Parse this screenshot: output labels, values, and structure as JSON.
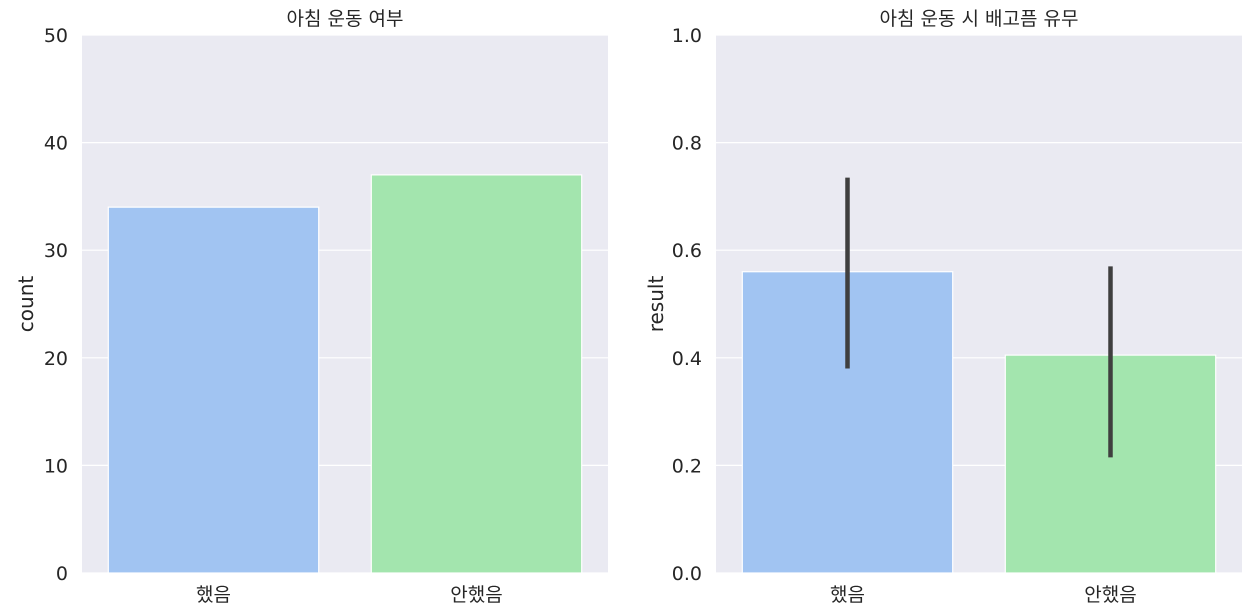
{
  "chart_data": [
    {
      "type": "bar",
      "title": "아침 운동 여부",
      "xlabel": "",
      "ylabel": "count",
      "categories": [
        "했음",
        "안했음"
      ],
      "values": [
        34,
        37
      ],
      "colors": [
        "#a1c4f2",
        "#a3e5ae"
      ],
      "ylim": [
        0,
        50
      ],
      "yticks": [
        0,
        10,
        20,
        30,
        40,
        50
      ],
      "ytick_labels": [
        "0",
        "10",
        "20",
        "30",
        "40",
        "50"
      ],
      "grid": true,
      "background": "#eaeaf2"
    },
    {
      "type": "bar",
      "title": "아침 운동 시 배고픔 유무",
      "xlabel": "",
      "ylabel": "result",
      "categories": [
        "했음",
        "안했음"
      ],
      "values": [
        0.56,
        0.405
      ],
      "error_bars": [
        [
          0.38,
          0.735
        ],
        [
          0.215,
          0.57
        ]
      ],
      "colors": [
        "#a1c4f2",
        "#a3e5ae"
      ],
      "ylim": [
        0,
        1.0
      ],
      "yticks": [
        0,
        0.2,
        0.4,
        0.6,
        0.8,
        1.0
      ],
      "ytick_labels": [
        "0.0",
        "0.2",
        "0.4",
        "0.6",
        "0.8",
        "1.0"
      ],
      "grid": true,
      "background": "#eaeaf2"
    }
  ]
}
